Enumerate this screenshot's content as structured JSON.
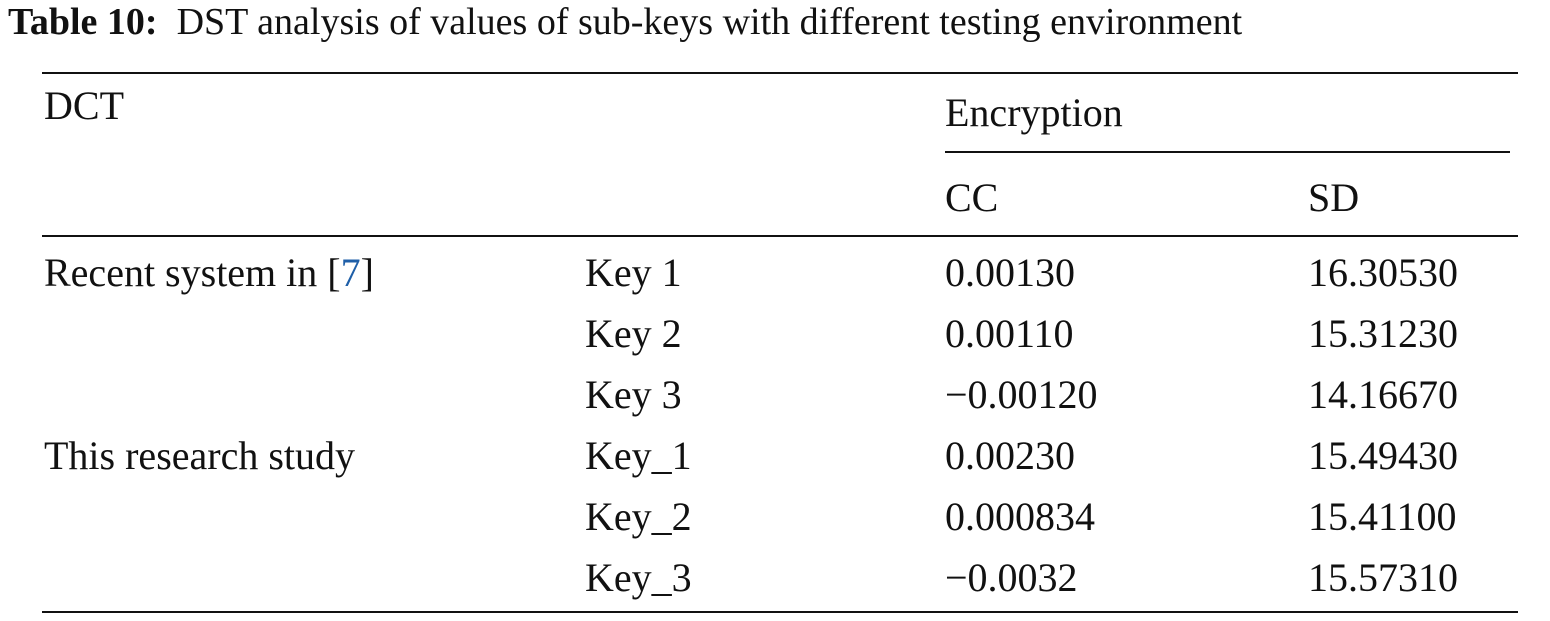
{
  "caption": {
    "label": "Table 10:",
    "text": "DST analysis of values of sub-keys with different testing environment"
  },
  "table": {
    "header": {
      "first": "DCT",
      "group": "Encryption",
      "columns": [
        "CC",
        "SD"
      ]
    },
    "groups": [
      {
        "label": {
          "before": "Recent system in [",
          "ref": "7",
          "after": "]"
        },
        "rows": [
          {
            "key": "Key 1",
            "cc": "0.00130",
            "sd": "16.30530"
          },
          {
            "key": "Key 2",
            "cc": "0.00110",
            "sd": "15.31230"
          },
          {
            "key": "Key 3",
            "cc": "−0.00120",
            "sd": "14.16670"
          }
        ]
      },
      {
        "label": {
          "before": "This research study"
        },
        "rows": [
          {
            "key": "Key_1",
            "cc": "0.00230",
            "sd": "15.49430"
          },
          {
            "key": "Key_2",
            "cc": "0.000834",
            "sd": "15.41100"
          },
          {
            "key": "Key_3",
            "cc": "−0.0032",
            "sd": "15.57310"
          }
        ]
      }
    ]
  }
}
